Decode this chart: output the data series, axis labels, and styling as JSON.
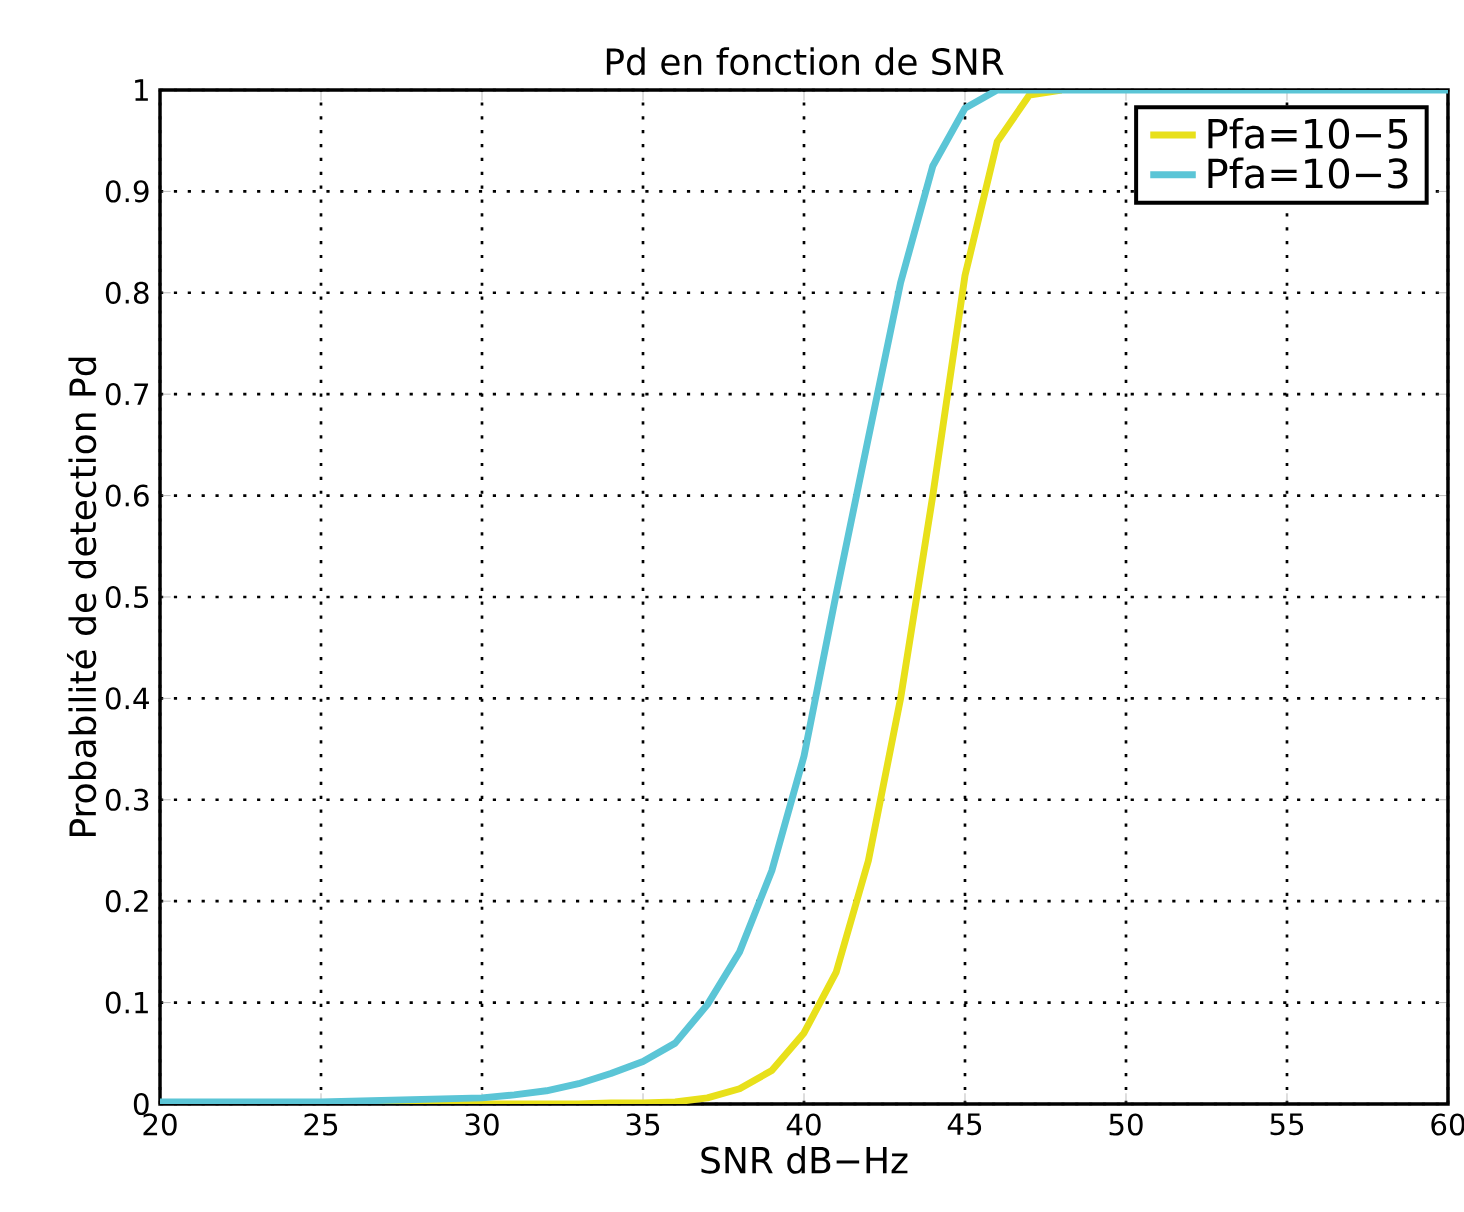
{
  "chart_data": {
    "type": "line",
    "title": "Pd en fonction de SNR",
    "xlabel": "SNR dB−Hz",
    "ylabel": "Probabilité de detection Pd",
    "x": [
      20,
      25,
      30,
      31,
      32,
      33,
      34,
      35,
      36,
      37,
      38,
      39,
      40,
      41,
      42,
      43,
      44,
      45,
      46,
      47,
      48,
      50,
      55,
      60
    ],
    "series": [
      {
        "name": "Pfa=10−5",
        "color": "#e8e01a",
        "values": [
          0,
          0,
          0,
          0,
          0,
          0,
          0.001,
          0.001,
          0.002,
          0.006,
          0.015,
          0.033,
          0.07,
          0.13,
          0.24,
          0.4,
          0.6,
          0.817,
          0.949,
          0.995,
          1,
          null,
          null,
          null
        ]
      },
      {
        "name": "Pfa=10−3",
        "color": "#5bc5d6",
        "values": [
          0.002,
          0.002,
          0.006,
          0.009,
          0.013,
          0.02,
          0.03,
          0.042,
          0.06,
          0.098,
          0.15,
          0.23,
          0.343,
          0.503,
          0.657,
          0.81,
          0.925,
          0.982,
          1,
          1,
          1,
          1,
          1,
          1
        ]
      }
    ],
    "xlim": [
      20,
      60
    ],
    "ylim": [
      0,
      1
    ],
    "xticks": [
      20,
      25,
      30,
      35,
      40,
      45,
      50,
      55,
      60
    ],
    "yticks": [
      0,
      0.1,
      0.2,
      0.3,
      0.4,
      0.5,
      0.6,
      0.7,
      0.8,
      0.9,
      1
    ],
    "grid": true,
    "legend": "top right",
    "line_style": "solid",
    "marker": "none"
  }
}
